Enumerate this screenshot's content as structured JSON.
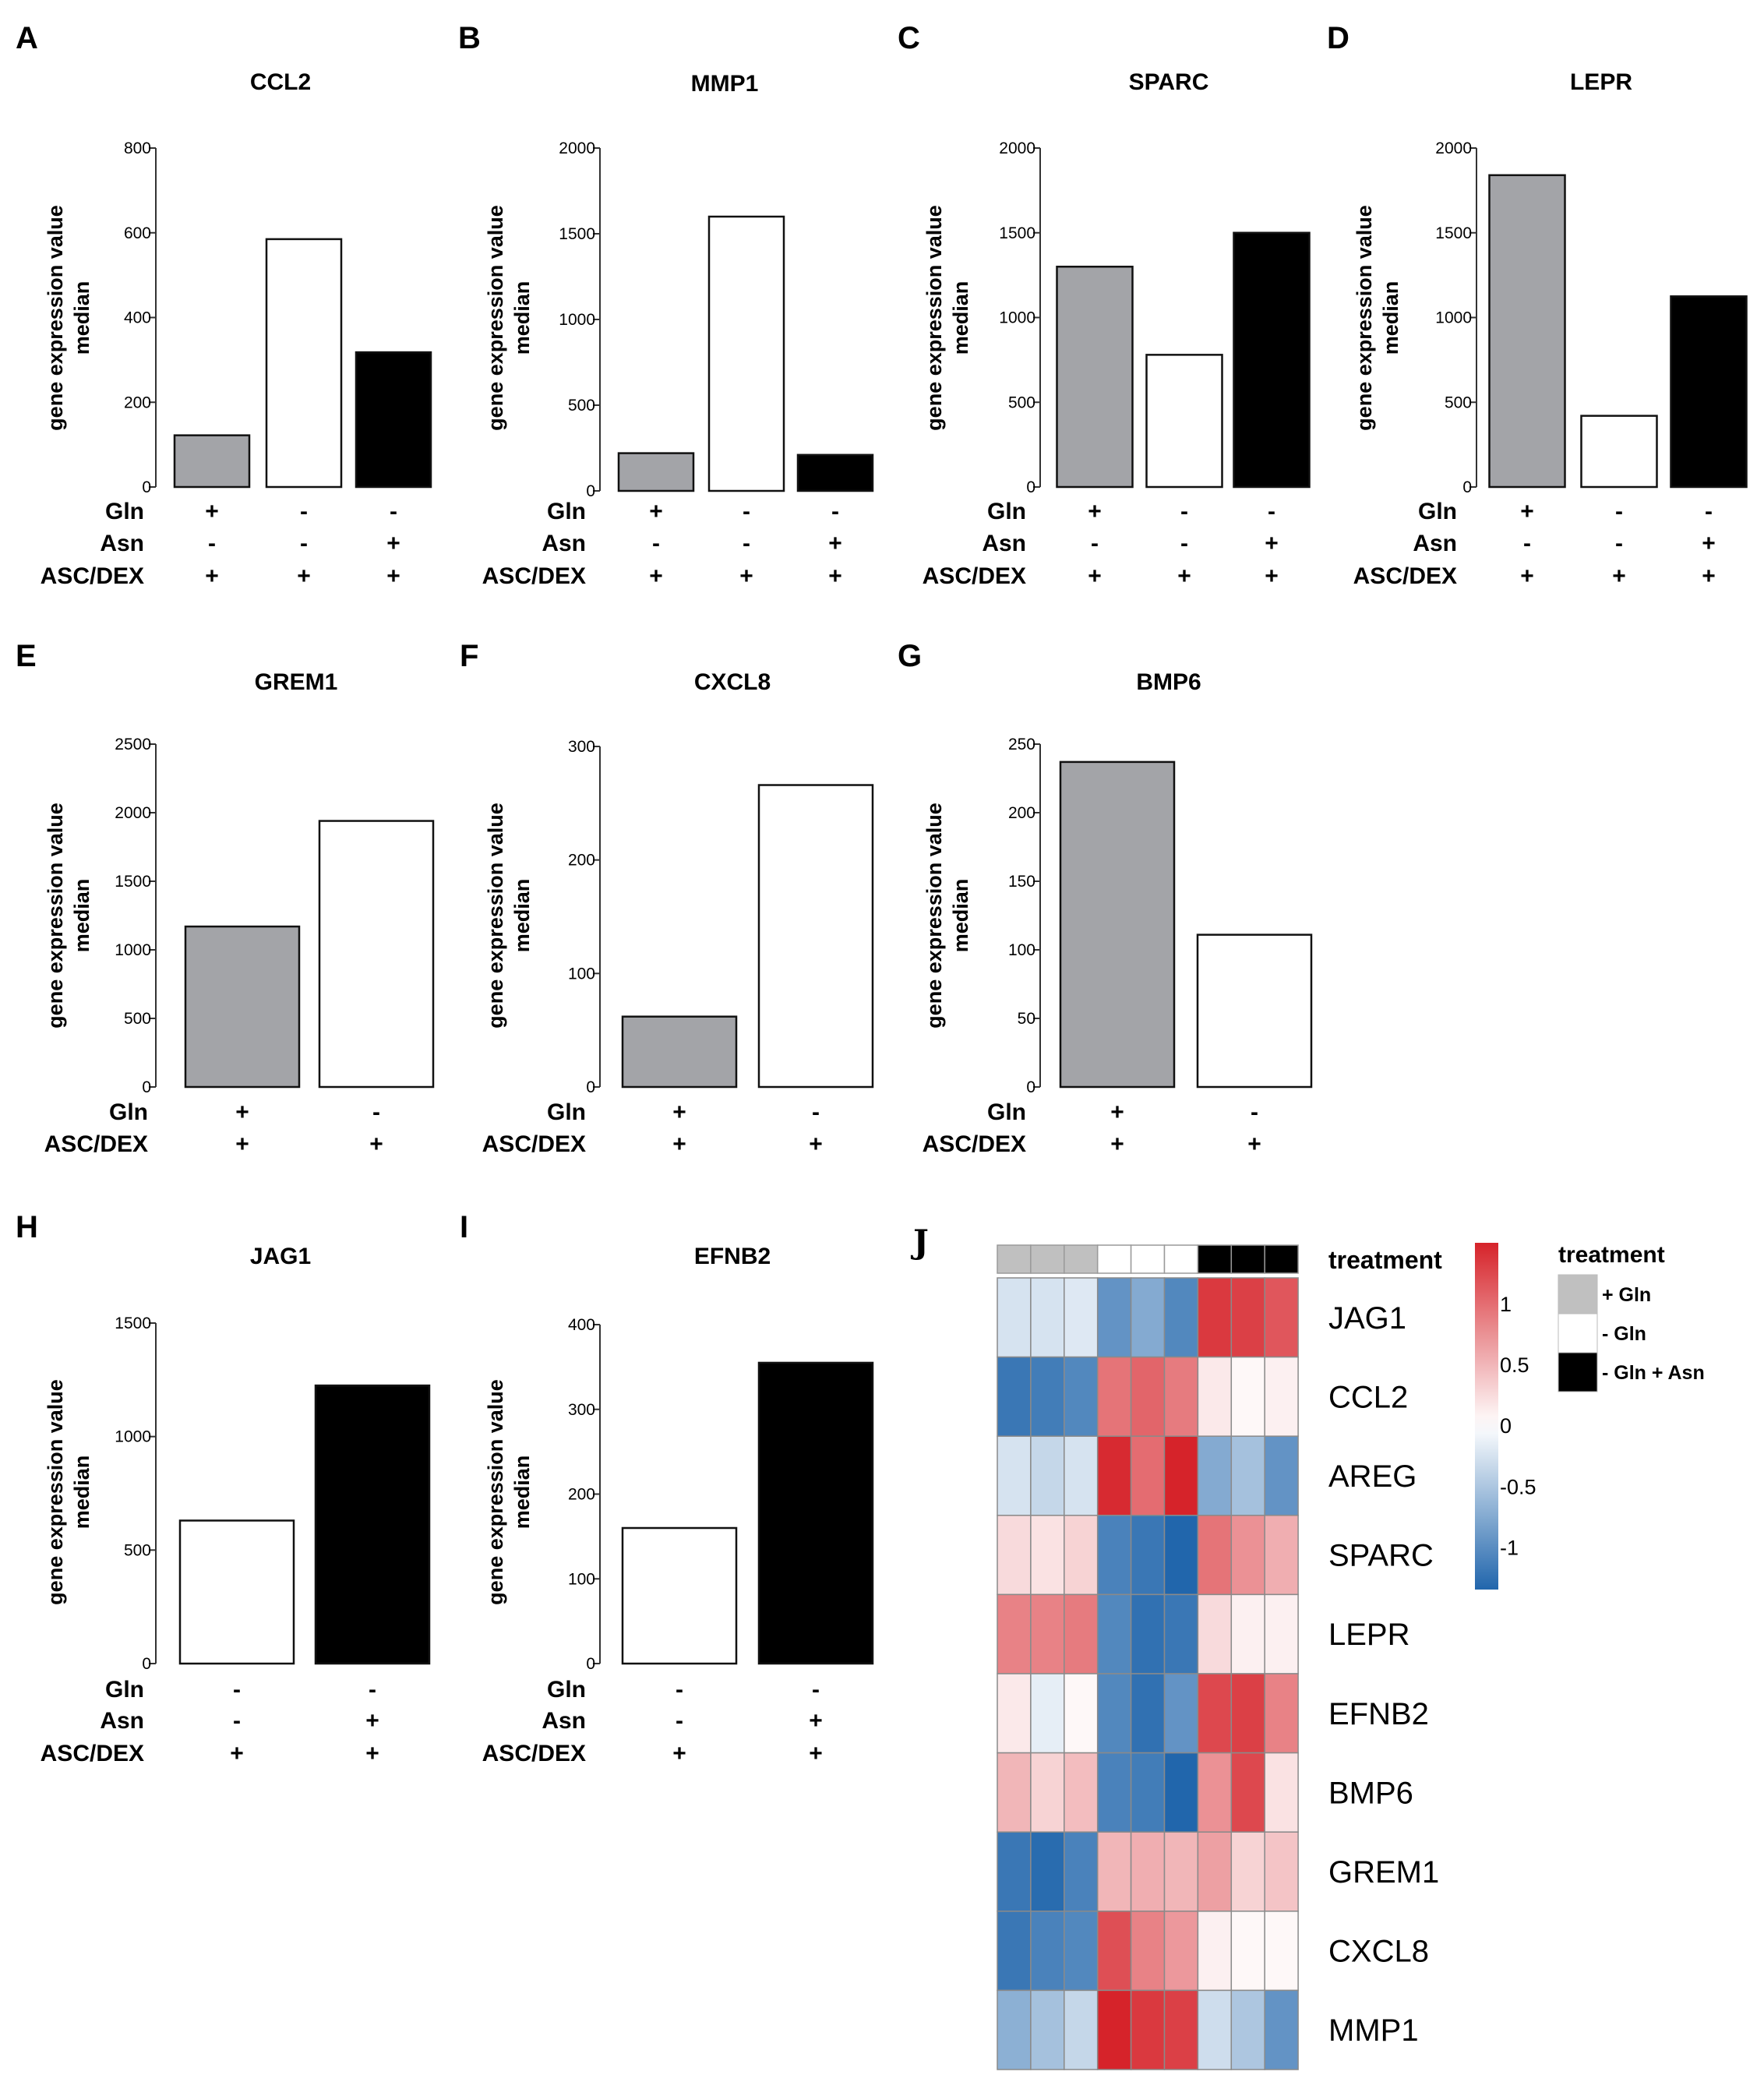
{
  "colors": {
    "gln": "#a3a4a8",
    "no_gln": "#ffffff",
    "asn": "#000000"
  },
  "chart_data": [
    {
      "id": "A",
      "type": "bar",
      "title": "CCL2",
      "ylabel": [
        "gene expression value",
        "median"
      ],
      "ylim": [
        0,
        800
      ],
      "yticks": [
        "0",
        "200",
        "400",
        "600",
        "800"
      ],
      "condition_rows": [
        "Gln",
        "Asn",
        "ASC/DEX"
      ],
      "bars": [
        {
          "treatment": "+ Gln",
          "value": 122,
          "color": "#a3a4a8",
          "marks": [
            "+",
            "-",
            "+"
          ]
        },
        {
          "treatment": "- Gln",
          "value": 585,
          "color": "#ffffff",
          "marks": [
            "-",
            "-",
            "+"
          ]
        },
        {
          "treatment": "- Gln + Asn",
          "value": 318,
          "color": "#000000",
          "marks": [
            "-",
            "+",
            "+"
          ]
        }
      ]
    },
    {
      "id": "B",
      "type": "bar",
      "title": "MMP1",
      "ylabel": [
        "gene expression value",
        "median"
      ],
      "ylim": [
        0,
        2000
      ],
      "yticks": [
        "0",
        "500",
        "1000",
        "1500",
        "2000"
      ],
      "condition_rows": [
        "Gln",
        "Asn",
        "ASC/DEX"
      ],
      "bars": [
        {
          "treatment": "+ Gln",
          "value": 220,
          "color": "#a3a4a8",
          "marks": [
            "+",
            "-",
            "+"
          ]
        },
        {
          "treatment": "- Gln",
          "value": 1600,
          "color": "#ffffff",
          "marks": [
            "-",
            "-",
            "+"
          ]
        },
        {
          "treatment": "- Gln + Asn",
          "value": 210,
          "color": "#000000",
          "marks": [
            "-",
            "+",
            "+"
          ]
        }
      ]
    },
    {
      "id": "C",
      "type": "bar",
      "title": "SPARC",
      "ylabel": [
        "gene expression value",
        "median"
      ],
      "ylim": [
        0,
        2000
      ],
      "yticks": [
        "0",
        "500",
        "1000",
        "1500",
        "2000"
      ],
      "condition_rows": [
        "Gln",
        "Asn",
        "ASC/DEX"
      ],
      "bars": [
        {
          "treatment": "+ Gln",
          "value": 1300,
          "color": "#a3a4a8",
          "marks": [
            "+",
            "-",
            "+"
          ]
        },
        {
          "treatment": "- Gln",
          "value": 780,
          "color": "#ffffff",
          "marks": [
            "-",
            "-",
            "+"
          ]
        },
        {
          "treatment": "- Gln + Asn",
          "value": 1500,
          "color": "#000000",
          "marks": [
            "-",
            "+",
            "+"
          ]
        }
      ]
    },
    {
      "id": "D",
      "type": "bar",
      "title": "LEPR",
      "ylabel": [
        "gene expression value",
        "median"
      ],
      "ylim": [
        0,
        2000
      ],
      "yticks": [
        "0",
        "500",
        "1000",
        "1500",
        "2000"
      ],
      "condition_rows": [
        "Gln",
        "Asn",
        "ASC/DEX"
      ],
      "bars": [
        {
          "treatment": "+ Gln",
          "value": 1840,
          "color": "#a3a4a8",
          "marks": [
            "+",
            "-",
            "+"
          ]
        },
        {
          "treatment": "- Gln",
          "value": 420,
          "color": "#ffffff",
          "marks": [
            "-",
            "-",
            "+"
          ]
        },
        {
          "treatment": "- Gln + Asn",
          "value": 1125,
          "color": "#000000",
          "marks": [
            "-",
            "+",
            "+"
          ]
        }
      ]
    },
    {
      "id": "E",
      "type": "bar",
      "title": "GREM1",
      "ylabel": [
        "gene expression value",
        "median"
      ],
      "ylim": [
        0,
        2500
      ],
      "yticks": [
        "0",
        "500",
        "1000",
        "1500",
        "2000",
        "2500"
      ],
      "condition_rows": [
        "Gln",
        "ASC/DEX"
      ],
      "bars": [
        {
          "treatment": "+ Gln",
          "value": 1170,
          "color": "#a3a4a8",
          "marks": [
            "+",
            "+"
          ]
        },
        {
          "treatment": "- Gln",
          "value": 1940,
          "color": "#ffffff",
          "marks": [
            "-",
            "+"
          ]
        }
      ]
    },
    {
      "id": "F",
      "type": "bar",
      "title": "CXCL8",
      "ylabel": [
        "gene expression value",
        "median"
      ],
      "ylim": [
        0,
        300
      ],
      "yticks": [
        "0",
        "100",
        "200",
        "300"
      ],
      "condition_rows": [
        "Gln",
        "ASC/DEX"
      ],
      "bars": [
        {
          "treatment": "+ Gln",
          "value": 62,
          "color": "#a3a4a8",
          "marks": [
            "+",
            "+"
          ]
        },
        {
          "treatment": "- Gln",
          "value": 266,
          "color": "#ffffff",
          "marks": [
            "-",
            "+"
          ]
        }
      ]
    },
    {
      "id": "G",
      "type": "bar",
      "title": "BMP6",
      "ylabel": [
        "gene expression value",
        "median"
      ],
      "ylim": [
        0,
        250
      ],
      "yticks": [
        "0",
        "50",
        "100",
        "150",
        "200",
        "250"
      ],
      "condition_rows": [
        "Gln",
        "ASC/DEX"
      ],
      "bars": [
        {
          "treatment": "+ Gln",
          "value": 237,
          "color": "#a3a4a8",
          "marks": [
            "+",
            "+"
          ]
        },
        {
          "treatment": "- Gln",
          "value": 111,
          "color": "#ffffff",
          "marks": [
            "-",
            "+"
          ]
        }
      ]
    },
    {
      "id": "H",
      "type": "bar",
      "title": "JAG1",
      "ylabel": [
        "gene expression value",
        "median"
      ],
      "ylim": [
        0,
        1500
      ],
      "yticks": [
        "0",
        "500",
        "1000",
        "1500"
      ],
      "condition_rows": [
        "Gln",
        "Asn",
        "ASC/DEX"
      ],
      "bars": [
        {
          "treatment": "- Gln",
          "value": 630,
          "color": "#ffffff",
          "marks": [
            "-",
            "-",
            "+"
          ]
        },
        {
          "treatment": "- Gln + Asn",
          "value": 1225,
          "color": "#000000",
          "marks": [
            "-",
            "+",
            "+"
          ]
        }
      ]
    },
    {
      "id": "I",
      "type": "bar",
      "title": "EFNB2",
      "ylabel": [
        "gene expression value",
        "median"
      ],
      "ylim": [
        0,
        400
      ],
      "yticks": [
        "0",
        "100",
        "200",
        "300",
        "400"
      ],
      "condition_rows": [
        "Gln",
        "Asn",
        "ASC/DEX"
      ],
      "bars": [
        {
          "treatment": "- Gln",
          "value": 160,
          "color": "#ffffff",
          "marks": [
            "-",
            "-",
            "+"
          ]
        },
        {
          "treatment": "- Gln + Asn",
          "value": 355,
          "color": "#000000",
          "marks": [
            "-",
            "+",
            "+"
          ]
        }
      ]
    },
    {
      "id": "J",
      "type": "heatmap",
      "annotation_label": "treatment",
      "column_treatments": [
        "+ Gln",
        "+ Gln",
        "+ Gln",
        "- Gln",
        "- Gln",
        "- Gln",
        "- Gln + Asn",
        "- Gln + Asn",
        "- Gln + Asn"
      ],
      "genes": [
        "JAG1",
        "CCL2",
        "AREG",
        "SPARC",
        "LEPR",
        "EFNB2",
        "BMP6",
        "GREM1",
        "CXCL8",
        "MMP1"
      ],
      "values": [
        [
          -0.25,
          -0.25,
          -0.2,
          -0.95,
          -0.75,
          -1.05,
          1.35,
          1.3,
          1.15
        ],
        [
          -1.2,
          -1.15,
          -1.05,
          0.95,
          1.05,
          0.9,
          0.15,
          0.05,
          0.1
        ],
        [
          -0.25,
          -0.35,
          -0.25,
          1.45,
          1.0,
          1.5,
          -0.75,
          -0.55,
          -0.95
        ],
        [
          0.25,
          0.2,
          0.3,
          -1.1,
          -1.2,
          -1.35,
          0.95,
          0.75,
          0.55
        ],
        [
          0.85,
          0.85,
          0.9,
          -1.05,
          -1.25,
          -1.2,
          0.25,
          0.1,
          0.1
        ],
        [
          0.15,
          -0.15,
          0.05,
          -1.05,
          -1.25,
          -0.95,
          1.25,
          1.3,
          0.85
        ],
        [
          0.5,
          0.3,
          0.45,
          -1.1,
          -1.15,
          -1.35,
          0.75,
          1.25,
          0.2
        ],
        [
          -1.2,
          -1.3,
          -1.1,
          0.5,
          0.55,
          0.5,
          0.65,
          0.3,
          0.4
        ],
        [
          -1.2,
          -1.1,
          -1.05,
          1.2,
          0.85,
          0.7,
          0.1,
          0.05,
          0.05
        ],
        [
          -0.7,
          -0.55,
          -0.35,
          1.5,
          1.35,
          1.3,
          -0.3,
          -0.5,
          -0.95
        ]
      ],
      "color_scale": {
        "min": -1.35,
        "max": 1.5,
        "ticks": [
          "1",
          "0.5",
          "0",
          "-0.5",
          "-1"
        ],
        "colors": [
          "#2166ac",
          "#ffffff",
          "#d6232a"
        ]
      },
      "legend": {
        "title": "treatment",
        "items": [
          {
            "label": "+ Gln",
            "color": "#c0c0c0"
          },
          {
            "label": "- Gln",
            "color": "#ffffff"
          },
          {
            "label": "- Gln + Asn",
            "color": "#000000"
          }
        ]
      }
    }
  ]
}
